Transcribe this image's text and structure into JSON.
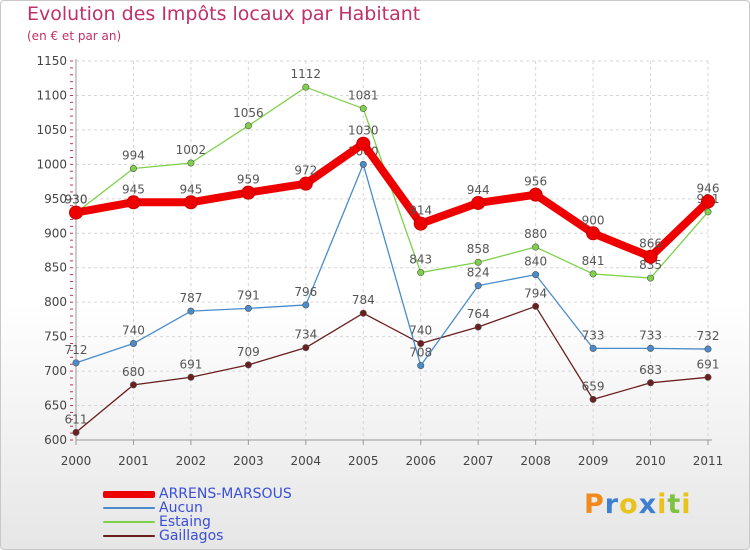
{
  "title": "Evolution des Impôts locaux par Habitant",
  "subtitle": "(en € et par an)",
  "logo": {
    "text": "Proxiti"
  },
  "chart_data": {
    "type": "line",
    "title": "Evolution des Impôts locaux par Habitant",
    "subtitle": "(en € et par an)",
    "x": [
      "2000",
      "2001",
      "2002",
      "2003",
      "2004",
      "2005",
      "2006",
      "2007",
      "2008",
      "2009",
      "2010",
      "2011"
    ],
    "ylim": [
      600,
      1150
    ],
    "yticks": [
      600,
      650,
      700,
      750,
      800,
      850,
      900,
      950,
      1000,
      1050,
      1100,
      1150
    ],
    "grid": true,
    "legend_position": "bottom-left",
    "series": [
      {
        "name": "Gaillagos",
        "color": "#6b1e1e",
        "values": [
          611,
          680,
          691,
          709,
          734,
          784,
          740,
          764,
          794,
          659,
          683,
          691
        ]
      },
      {
        "name": "Estaing",
        "color": "#7fd14a",
        "values": [
          930,
          994,
          1002,
          1056,
          1112,
          1081,
          843,
          858,
          880,
          841,
          835,
          931
        ]
      },
      {
        "name": "Aucun",
        "color": "#4a8ccb",
        "values": [
          712,
          740,
          787,
          791,
          796,
          1000,
          708,
          824,
          840,
          733,
          733,
          732
        ]
      },
      {
        "name": "ARRENS-MARSOUS",
        "color": "#ee0000",
        "values": [
          930,
          945,
          945,
          959,
          972,
          1030,
          914,
          944,
          956,
          900,
          866,
          946
        ]
      }
    ]
  }
}
